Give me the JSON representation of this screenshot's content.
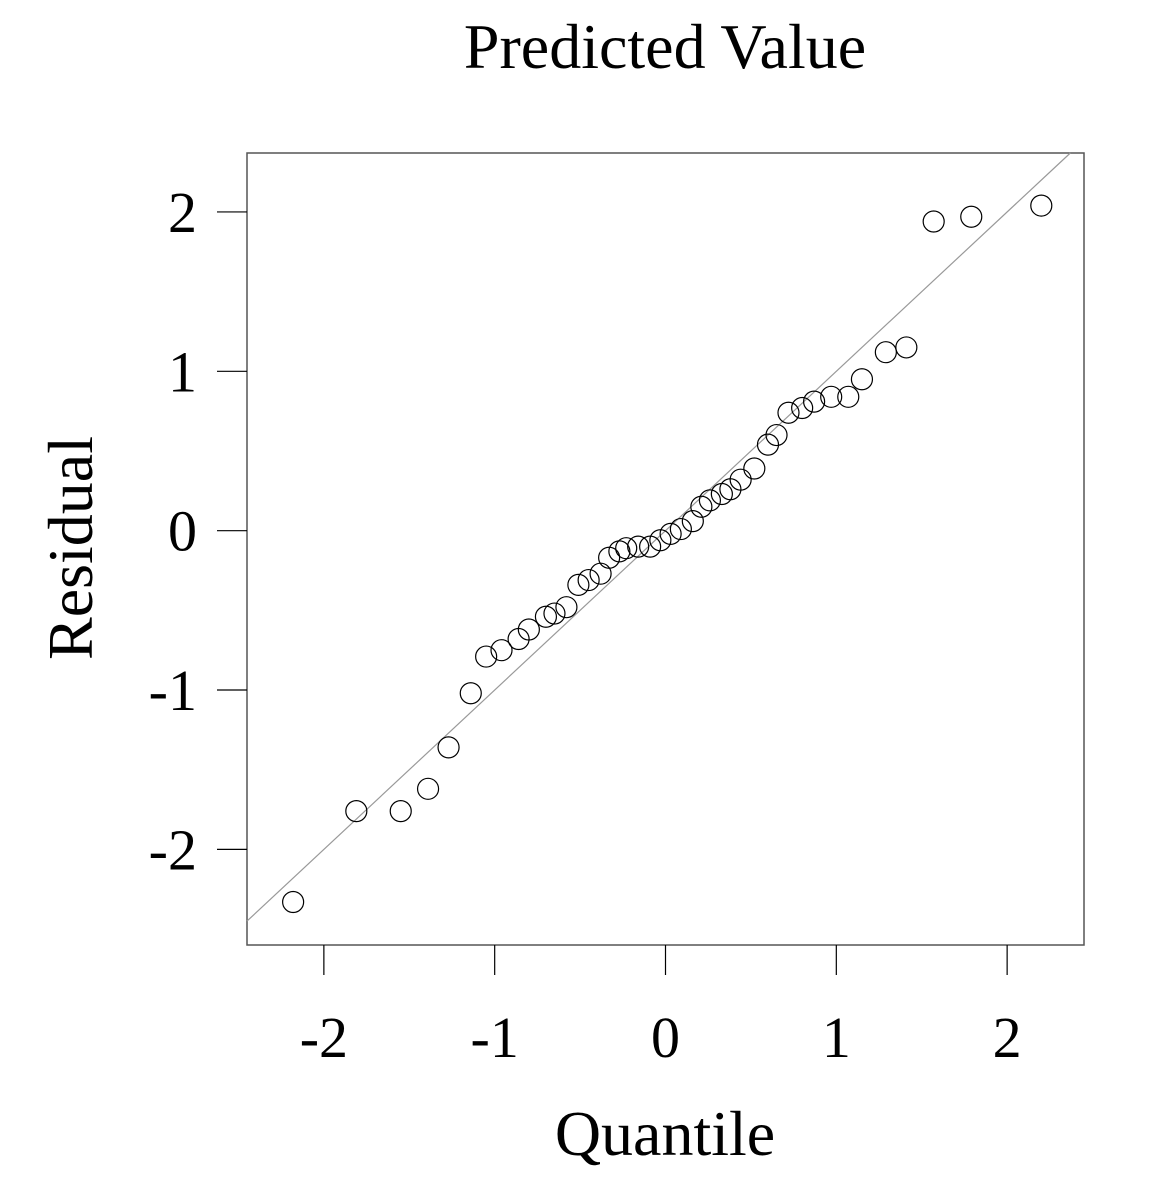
{
  "chart_data": {
    "type": "scatter",
    "title": "Predicted Value",
    "xlabel": "Quantile",
    "ylabel": "Residual",
    "xlim": [
      -2.45,
      2.45
    ],
    "ylim": [
      -2.6,
      2.37
    ],
    "xticks": [
      -2,
      -1,
      0,
      1,
      2
    ],
    "yticks": [
      -2,
      -1,
      0,
      1,
      2
    ],
    "xtick_labels": [
      "-2",
      "-1",
      "0",
      "1",
      "2"
    ],
    "ytick_labels": [
      "-2",
      "-1",
      "0",
      "1",
      "2"
    ],
    "grid": false,
    "reference_line": {
      "intercept": 0.0,
      "slope": 1.0,
      "color": "#999999"
    },
    "marker": "open-circle",
    "points": [
      {
        "x": -2.18,
        "y": -2.33
      },
      {
        "x": -1.81,
        "y": -1.76
      },
      {
        "x": -1.55,
        "y": -1.76
      },
      {
        "x": -1.39,
        "y": -1.62
      },
      {
        "x": -1.27,
        "y": -1.36
      },
      {
        "x": -1.14,
        "y": -1.02
      },
      {
        "x": -1.05,
        "y": -0.79
      },
      {
        "x": -0.96,
        "y": -0.75
      },
      {
        "x": -0.86,
        "y": -0.68
      },
      {
        "x": -0.8,
        "y": -0.62
      },
      {
        "x": -0.7,
        "y": -0.54
      },
      {
        "x": -0.65,
        "y": -0.52
      },
      {
        "x": -0.58,
        "y": -0.48
      },
      {
        "x": -0.51,
        "y": -0.34
      },
      {
        "x": -0.45,
        "y": -0.31
      },
      {
        "x": -0.38,
        "y": -0.27
      },
      {
        "x": -0.33,
        "y": -0.17
      },
      {
        "x": -0.27,
        "y": -0.13
      },
      {
        "x": -0.23,
        "y": -0.11
      },
      {
        "x": -0.16,
        "y": -0.1
      },
      {
        "x": -0.09,
        "y": -0.1
      },
      {
        "x": -0.03,
        "y": -0.06
      },
      {
        "x": 0.03,
        "y": -0.02
      },
      {
        "x": 0.09,
        "y": 0.01
      },
      {
        "x": 0.16,
        "y": 0.06
      },
      {
        "x": 0.21,
        "y": 0.15
      },
      {
        "x": 0.26,
        "y": 0.19
      },
      {
        "x": 0.33,
        "y": 0.23
      },
      {
        "x": 0.38,
        "y": 0.26
      },
      {
        "x": 0.44,
        "y": 0.32
      },
      {
        "x": 0.52,
        "y": 0.39
      },
      {
        "x": 0.6,
        "y": 0.54
      },
      {
        "x": 0.65,
        "y": 0.6
      },
      {
        "x": 0.72,
        "y": 0.74
      },
      {
        "x": 0.8,
        "y": 0.77
      },
      {
        "x": 0.87,
        "y": 0.81
      },
      {
        "x": 0.97,
        "y": 0.84
      },
      {
        "x": 1.07,
        "y": 0.84
      },
      {
        "x": 1.15,
        "y": 0.95
      },
      {
        "x": 1.29,
        "y": 1.12
      },
      {
        "x": 1.41,
        "y": 1.15
      },
      {
        "x": 1.57,
        "y": 1.94
      },
      {
        "x": 1.79,
        "y": 1.97
      },
      {
        "x": 2.2,
        "y": 2.04
      }
    ]
  }
}
